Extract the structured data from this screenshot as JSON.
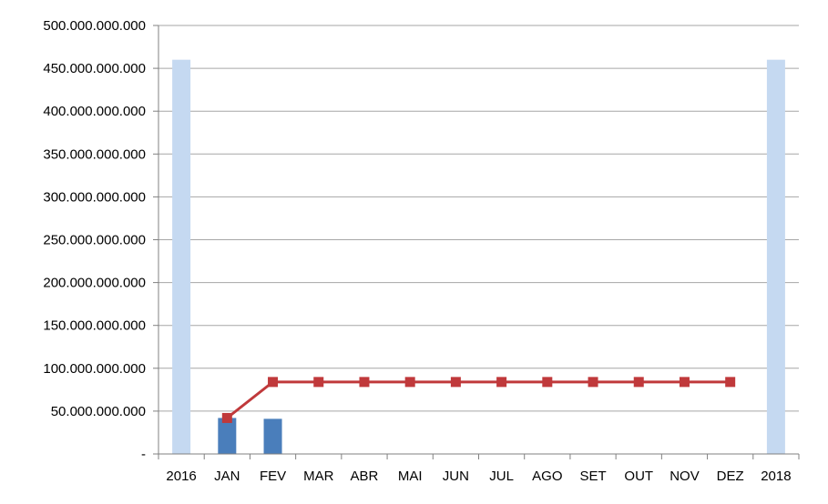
{
  "chart_data": {
    "type": "bar",
    "categories": [
      "2016",
      "JAN",
      "FEV",
      "MAR",
      "ABR",
      "MAI",
      "JUN",
      "JUL",
      "AGO",
      "SET",
      "OUT",
      "NOV",
      "DEZ",
      "2018"
    ],
    "y_tick_labels": [
      "-",
      "50.000.000.000",
      "100.000.000.000",
      "150.000.000.000",
      "200.000.000.000",
      "250.000.000.000",
      "300.000.000.000",
      "350.000.000.000",
      "400.000.000.000",
      "450.000.000.000",
      "500.000.000.000"
    ],
    "ylim": [
      0,
      500000000000
    ],
    "y_tick_step": 50000000000,
    "grid": true,
    "legend": "none",
    "series": [
      {
        "type": "bar",
        "color": "#c5d9f1",
        "values": [
          460000000000,
          null,
          null,
          null,
          null,
          null,
          null,
          null,
          null,
          null,
          null,
          null,
          null,
          460000000000
        ]
      },
      {
        "type": "bar",
        "color": "#4a7ebb",
        "values": [
          null,
          42000000000,
          41000000000,
          null,
          null,
          null,
          null,
          null,
          null,
          null,
          null,
          null,
          null,
          null
        ]
      },
      {
        "type": "line",
        "color": "#c0393b",
        "marker": "square",
        "values": [
          null,
          42000000000,
          84000000000,
          84000000000,
          84000000000,
          84000000000,
          84000000000,
          84000000000,
          84000000000,
          84000000000,
          84000000000,
          84000000000,
          84000000000,
          null
        ]
      }
    ]
  }
}
